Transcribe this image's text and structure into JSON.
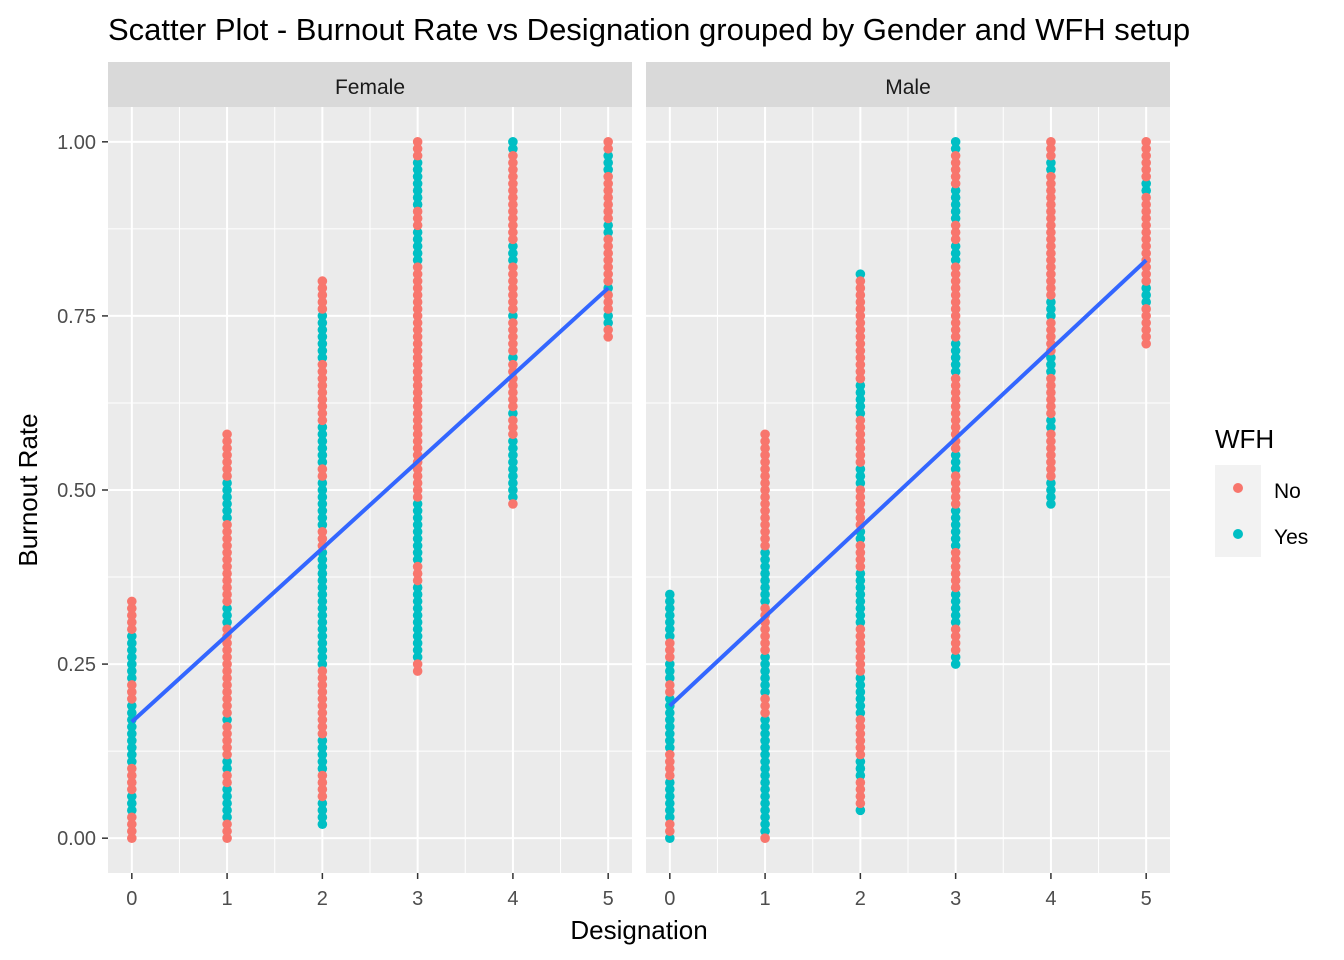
{
  "chart_data": {
    "type": "scatter",
    "title": "Scatter Plot - Burnout Rate vs Designation grouped by Gender and WFH setup",
    "xlabel": "Designation",
    "ylabel": "Burnout Rate",
    "xlim": [
      -0.25,
      5.25
    ],
    "ylim": [
      -0.05,
      1.05
    ],
    "x_ticks": [
      0,
      1,
      2,
      3,
      4,
      5
    ],
    "x_tick_labels": [
      "0",
      "1",
      "2",
      "3",
      "4",
      "5"
    ],
    "y_ticks": [
      0,
      0.25,
      0.5,
      0.75,
      1.0
    ],
    "y_tick_labels": [
      "0.00",
      "0.25",
      "0.50",
      "0.75",
      "1.00"
    ],
    "grid": true,
    "legend": {
      "title": "WFH",
      "position": "right",
      "entries": [
        {
          "label": "No",
          "color": "#F8766D"
        },
        {
          "label": "Yes",
          "color": "#00BFC4"
        }
      ]
    },
    "trend_line_color": "#3366FF",
    "point_step": 0.01,
    "panels": [
      {
        "facet": "Female",
        "fit": {
          "x0": 0,
          "y0": 0.167,
          "x1": 5,
          "y1": 0.79
        },
        "groups": [
          {
            "designation": 0,
            "min": 0.0,
            "max": 0.34,
            "no": [
              [
                0.0,
                0.03
              ],
              [
                0.07,
                0.1
              ],
              [
                0.2,
                0.22
              ],
              [
                0.3,
                0.34
              ]
            ],
            "yes": [
              [
                0.04,
                0.06
              ],
              [
                0.11,
                0.19
              ],
              [
                0.23,
                0.29
              ]
            ]
          },
          {
            "designation": 1,
            "min": 0.0,
            "max": 0.58,
            "no": [
              [
                0.0,
                0.02
              ],
              [
                0.08,
                0.09
              ],
              [
                0.12,
                0.16
              ],
              [
                0.18,
                0.3
              ],
              [
                0.34,
                0.45
              ],
              [
                0.52,
                0.58
              ]
            ],
            "yes": [
              [
                0.03,
                0.07
              ],
              [
                0.1,
                0.11
              ],
              [
                0.17,
                0.17
              ],
              [
                0.31,
                0.33
              ],
              [
                0.46,
                0.51
              ]
            ]
          },
          {
            "designation": 2,
            "min": 0.02,
            "max": 0.8,
            "no": [
              [
                0.06,
                0.09
              ],
              [
                0.15,
                0.24
              ],
              [
                0.42,
                0.44
              ],
              [
                0.52,
                0.53
              ],
              [
                0.6,
                0.68
              ],
              [
                0.76,
                0.8
              ]
            ],
            "yes": [
              [
                0.02,
                0.05
              ],
              [
                0.1,
                0.14
              ],
              [
                0.25,
                0.41
              ],
              [
                0.45,
                0.51
              ],
              [
                0.54,
                0.59
              ],
              [
                0.69,
                0.75
              ]
            ]
          },
          {
            "designation": 3,
            "min": 0.24,
            "max": 1.0,
            "no": [
              [
                0.24,
                0.25
              ],
              [
                0.37,
                0.39
              ],
              [
                0.49,
                0.82
              ],
              [
                0.88,
                0.9
              ],
              [
                0.98,
                1.0
              ]
            ],
            "yes": [
              [
                0.26,
                0.36
              ],
              [
                0.4,
                0.48
              ],
              [
                0.83,
                0.87
              ],
              [
                0.91,
                0.97
              ]
            ]
          },
          {
            "designation": 4,
            "min": 0.48,
            "max": 1.0,
            "no": [
              [
                0.48,
                0.48
              ],
              [
                0.58,
                0.6
              ],
              [
                0.62,
                0.68
              ],
              [
                0.7,
                0.74
              ],
              [
                0.76,
                0.82
              ],
              [
                0.86,
                0.98
              ]
            ],
            "yes": [
              [
                0.49,
                0.57
              ],
              [
                0.61,
                0.61
              ],
              [
                0.69,
                0.69
              ],
              [
                0.75,
                0.75
              ],
              [
                0.83,
                0.85
              ],
              [
                0.99,
                1.0
              ]
            ]
          },
          {
            "designation": 5,
            "min": 0.72,
            "max": 1.0,
            "no": [
              [
                0.72,
                0.73
              ],
              [
                0.76,
                0.78
              ],
              [
                0.8,
                0.86
              ],
              [
                0.89,
                0.95
              ],
              [
                0.99,
                1.0
              ]
            ],
            "yes": [
              [
                0.74,
                0.75
              ],
              [
                0.79,
                0.79
              ],
              [
                0.87,
                0.88
              ],
              [
                0.96,
                0.98
              ]
            ]
          }
        ]
      },
      {
        "facet": "Male",
        "fit": {
          "x0": 0,
          "y0": 0.19,
          "x1": 5,
          "y1": 0.83
        },
        "groups": [
          {
            "designation": 0,
            "min": 0.0,
            "max": 0.35,
            "no": [
              [
                0.01,
                0.02
              ],
              [
                0.09,
                0.12
              ],
              [
                0.21,
                0.22
              ],
              [
                0.26,
                0.28
              ]
            ],
            "yes": [
              [
                0.0,
                0.0
              ],
              [
                0.03,
                0.08
              ],
              [
                0.13,
                0.2
              ],
              [
                0.23,
                0.25
              ],
              [
                0.29,
                0.35
              ]
            ]
          },
          {
            "designation": 1,
            "min": 0.0,
            "max": 0.58,
            "no": [
              [
                0.0,
                0.0
              ],
              [
                0.18,
                0.2
              ],
              [
                0.27,
                0.33
              ],
              [
                0.42,
                0.58
              ]
            ],
            "yes": [
              [
                0.01,
                0.17
              ],
              [
                0.21,
                0.26
              ],
              [
                0.34,
                0.41
              ]
            ]
          },
          {
            "designation": 2,
            "min": 0.04,
            "max": 0.81,
            "no": [
              [
                0.05,
                0.08
              ],
              [
                0.12,
                0.17
              ],
              [
                0.24,
                0.3
              ],
              [
                0.39,
                0.42
              ],
              [
                0.45,
                0.5
              ],
              [
                0.54,
                0.6
              ],
              [
                0.66,
                0.8
              ]
            ],
            "yes": [
              [
                0.04,
                0.04
              ],
              [
                0.09,
                0.11
              ],
              [
                0.18,
                0.23
              ],
              [
                0.31,
                0.38
              ],
              [
                0.43,
                0.44
              ],
              [
                0.51,
                0.53
              ],
              [
                0.61,
                0.65
              ],
              [
                0.81,
                0.81
              ]
            ]
          },
          {
            "designation": 3,
            "min": 0.25,
            "max": 1.0,
            "no": [
              [
                0.27,
                0.3
              ],
              [
                0.36,
                0.41
              ],
              [
                0.48,
                0.52
              ],
              [
                0.56,
                0.66
              ],
              [
                0.72,
                0.82
              ],
              [
                0.86,
                0.88
              ],
              [
                0.94,
                0.98
              ]
            ],
            "yes": [
              [
                0.25,
                0.26
              ],
              [
                0.31,
                0.35
              ],
              [
                0.42,
                0.47
              ],
              [
                0.53,
                0.55
              ],
              [
                0.67,
                0.71
              ],
              [
                0.83,
                0.85
              ],
              [
                0.89,
                0.93
              ],
              [
                0.99,
                1.0
              ]
            ]
          },
          {
            "designation": 4,
            "min": 0.48,
            "max": 1.0,
            "no": [
              [
                0.52,
                0.58
              ],
              [
                0.61,
                0.66
              ],
              [
                0.7,
                0.74
              ],
              [
                0.78,
                0.95
              ],
              [
                0.98,
                1.0
              ]
            ],
            "yes": [
              [
                0.48,
                0.51
              ],
              [
                0.59,
                0.6
              ],
              [
                0.67,
                0.69
              ],
              [
                0.75,
                0.77
              ],
              [
                0.96,
                0.97
              ]
            ]
          },
          {
            "designation": 5,
            "min": 0.71,
            "max": 1.0,
            "no": [
              [
                0.71,
                0.76
              ],
              [
                0.8,
                0.92
              ],
              [
                0.95,
                1.0
              ]
            ],
            "yes": [
              [
                0.77,
                0.79
              ],
              [
                0.93,
                0.94
              ]
            ]
          }
        ]
      }
    ]
  }
}
